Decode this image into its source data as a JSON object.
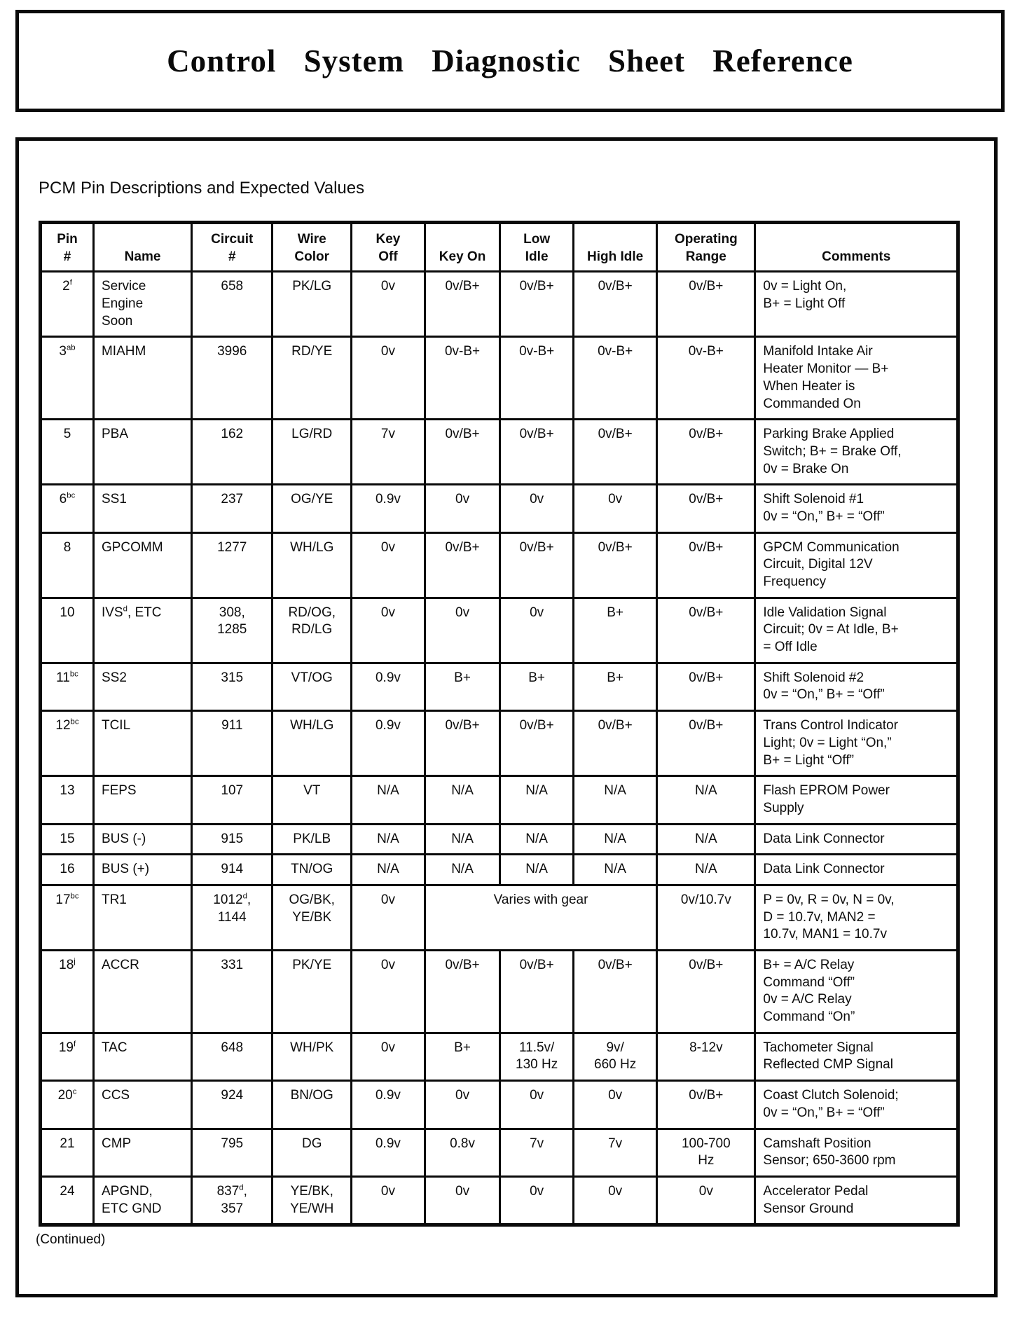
{
  "page": {
    "title": "Control System Diagnostic Sheet Reference",
    "section_heading": "PCM Pin Descriptions and Expected Values",
    "continued_note": "(Continued)"
  },
  "colors": {
    "ink": "#0a0a0a",
    "paper": "#ffffff"
  },
  "table": {
    "columns": [
      "Pin\n#",
      "Name",
      "Circuit\n#",
      "Wire\nColor",
      "Key\nOff",
      "Key On",
      "Low\nIdle",
      "High Idle",
      "Operating\nRange",
      "Comments"
    ],
    "rows": [
      {
        "cells": [
          "2^{f}",
          "Service\nEngine\nSoon",
          "658",
          "PK/LG",
          "0v",
          "0v/B+",
          "0v/B+",
          "0v/B+",
          "0v/B+",
          "0v = Light On,\nB+ = Light Off"
        ]
      },
      {
        "cells": [
          "3^{ab}",
          "MIAHM",
          "3996",
          "RD/YE",
          "0v",
          "0v-B+",
          "0v-B+",
          "0v-B+",
          "0v-B+",
          "Manifold Intake Air\nHeater Monitor — B+\nWhen Heater is\nCommanded On"
        ]
      },
      {
        "cells": [
          "5",
          "PBA",
          "162",
          "LG/RD",
          "7v",
          "0v/B+",
          "0v/B+",
          "0v/B+",
          "0v/B+",
          "Parking Brake Applied\nSwitch; B+ = Brake Off,\n0v = Brake On"
        ]
      },
      {
        "cells": [
          "6^{bc}",
          "SS1",
          "237",
          "OG/YE",
          "0.9v",
          "0v",
          "0v",
          "0v",
          "0v/B+",
          "Shift Solenoid #1\n0v = “On,” B+ = “Off”"
        ]
      },
      {
        "cells": [
          "8",
          "GPCOMM",
          "1277",
          "WH/LG",
          "0v",
          "0v/B+",
          "0v/B+",
          "0v/B+",
          "0v/B+",
          "GPCM Communication\nCircuit, Digital 12V\nFrequency"
        ]
      },
      {
        "cells": [
          "10",
          "IVS^{d}, ETC",
          "308,\n1285",
          "RD/OG,\nRD/LG",
          "0v",
          "0v",
          "0v",
          "B+",
          "0v/B+",
          "Idle Validation Signal\nCircuit; 0v = At Idle, B+\n= Off Idle"
        ]
      },
      {
        "cells": [
          "11^{bc}",
          "SS2",
          "315",
          "VT/OG",
          "0.9v",
          "B+",
          "B+",
          "B+",
          "0v/B+",
          "Shift Solenoid #2\n0v = “On,” B+ = “Off”"
        ]
      },
      {
        "cells": [
          "12^{bc}",
          "TCIL",
          "911",
          "WH/LG",
          "0.9v",
          "0v/B+",
          "0v/B+",
          "0v/B+",
          "0v/B+",
          "Trans Control Indicator\nLight; 0v = Light “On,”\nB+ = Light “Off”"
        ]
      },
      {
        "cells": [
          "13",
          "FEPS",
          "107",
          "VT",
          "N/A",
          "N/A",
          "N/A",
          "N/A",
          "N/A",
          "Flash EPROM Power\nSupply"
        ]
      },
      {
        "cells": [
          "15",
          "BUS (-)",
          "915",
          "PK/LB",
          "N/A",
          "N/A",
          "N/A",
          "N/A",
          "N/A",
          "Data Link Connector"
        ]
      },
      {
        "cells": [
          "16",
          "BUS (+)",
          "914",
          "TN/OG",
          "N/A",
          "N/A",
          "N/A",
          "N/A",
          "N/A",
          "Data Link Connector"
        ]
      },
      {
        "cells": [
          "17^{bc}",
          "TR1",
          "1012^{d},\n1144",
          "OG/BK,\nYE/BK",
          "0v",
          {
            "text": "Varies with gear",
            "colspan": 3
          },
          "0v/10.7v",
          "P = 0v, R = 0v, N = 0v,\nD = 10.7v, MAN2 =\n10.7v, MAN1 = 10.7v"
        ]
      },
      {
        "cells": [
          "18^{j}",
          "ACCR",
          "331",
          "PK/YE",
          "0v",
          "0v/B+",
          "0v/B+",
          "0v/B+",
          "0v/B+",
          "B+ = A/C Relay\nCommand “Off”\n0v = A/C Relay\nCommand “On”"
        ]
      },
      {
        "cells": [
          "19^{f}",
          "TAC",
          "648",
          "WH/PK",
          "0v",
          "B+",
          "11.5v/\n130 Hz",
          "9v/\n660 Hz",
          "8-12v",
          "Tachometer Signal\nReflected CMP Signal"
        ]
      },
      {
        "cells": [
          "20^{c}",
          "CCS",
          "924",
          "BN/OG",
          "0.9v",
          "0v",
          "0v",
          "0v",
          "0v/B+",
          "Coast Clutch Solenoid;\n0v = “On,” B+ = “Off”"
        ]
      },
      {
        "cells": [
          "21",
          "CMP",
          "795",
          "DG",
          "0.9v",
          "0.8v",
          "7v",
          "7v",
          "100-700\nHz",
          "Camshaft Position\nSensor; 650-3600 rpm"
        ]
      },
      {
        "cells": [
          "24",
          "APGND,\nETC GND",
          "837^{d},\n357",
          "YE/BK,\nYE/WH",
          "0v",
          "0v",
          "0v",
          "0v",
          "0v",
          "Accelerator Pedal\nSensor Ground"
        ]
      }
    ]
  }
}
